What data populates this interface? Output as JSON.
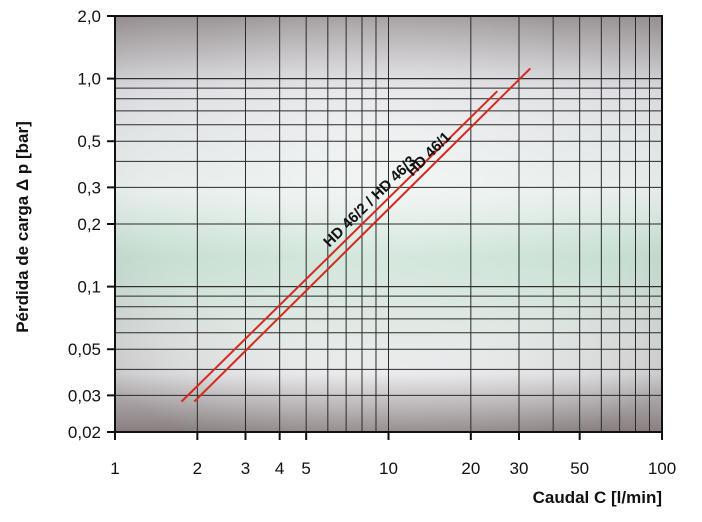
{
  "chart_data": {
    "type": "line",
    "title": "",
    "xlabel": "Caudal C [l/min]",
    "ylabel": "Pérdida de carga Δ p [bar]",
    "xscale": "log",
    "yscale": "log",
    "xlim": [
      1,
      100
    ],
    "ylim": [
      0.02,
      2.0
    ],
    "x_ticks": [
      1,
      2,
      3,
      4,
      5,
      10,
      20,
      30,
      50,
      100
    ],
    "x_tick_labels": [
      "1",
      "2",
      "3",
      "4",
      "5",
      "10",
      "20",
      "30",
      "50",
      "100"
    ],
    "y_ticks": [
      0.02,
      0.03,
      0.05,
      0.1,
      0.2,
      0.3,
      0.5,
      1.0,
      2.0
    ],
    "y_tick_labels": [
      "0,02",
      "0,03",
      "0,05",
      "0,1",
      "0,2",
      "0,3",
      "0,5",
      "1,0",
      "2,0"
    ],
    "grid": true,
    "legend": "none (series labelled directly on lines)",
    "series": [
      {
        "name": "HD 46/2 / HD 46/3",
        "color": "#d42a1e",
        "x": [
          1.75,
          25.0
        ],
        "y": [
          0.028,
          0.87
        ]
      },
      {
        "name": "HD 46/1",
        "color": "#d42a1e",
        "x": [
          1.95,
          33.0
        ],
        "y": [
          0.028,
          1.12
        ]
      }
    ]
  }
}
